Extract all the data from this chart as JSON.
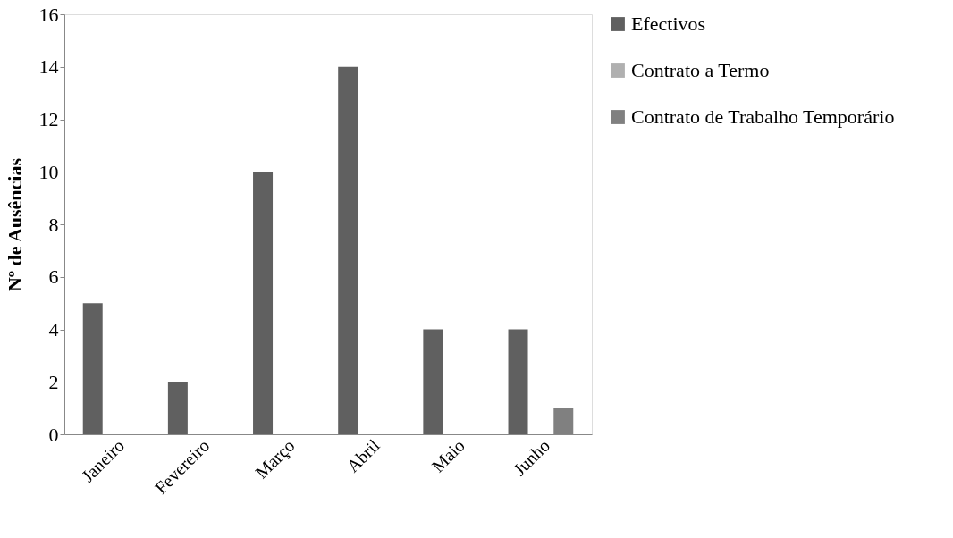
{
  "chart_data": {
    "type": "bar",
    "ylabel": "Nº de Ausências",
    "categories": [
      "Janeiro",
      "Fevereiro",
      "Março",
      "Abril",
      "Maio",
      "Junho"
    ],
    "series": [
      {
        "name": "Efectivos",
        "color": "#606060",
        "values": [
          5,
          2,
          10,
          14,
          4,
          4
        ]
      },
      {
        "name": "Contrato a Termo",
        "color": "#b0b0b0",
        "values": [
          0,
          0,
          0,
          0,
          0,
          0
        ]
      },
      {
        "name": "Contrato de Trabalho Temporário",
        "color": "#808080",
        "values": [
          0,
          0,
          0,
          0,
          0,
          1
        ]
      }
    ],
    "ylim": [
      0,
      16
    ],
    "yticks": [
      0,
      2,
      4,
      6,
      8,
      10,
      12,
      14,
      16
    ],
    "grid": false,
    "legend": "right"
  }
}
